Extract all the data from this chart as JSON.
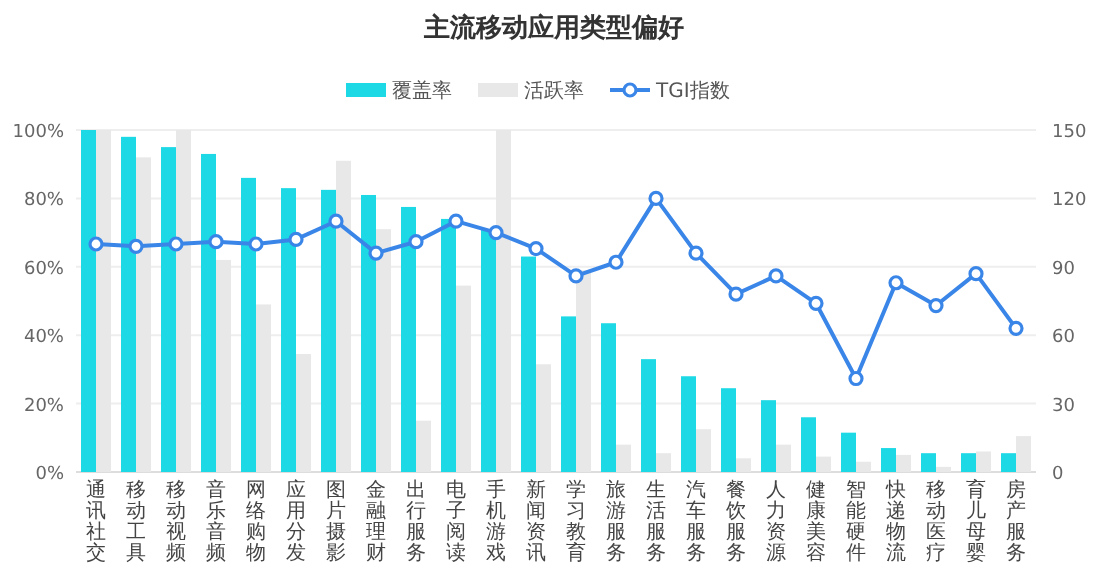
{
  "chart_data": {
    "type": "bar",
    "title": "主流移动应用类型偏好",
    "categories": [
      "通讯社交",
      "移动工具",
      "移动视频",
      "音乐音频",
      "网络购物",
      "应用分发",
      "图片摄影",
      "金融理财",
      "出行服务",
      "电子阅读",
      "手机游戏",
      "新闻资讯",
      "学习教育",
      "旅游服务",
      "生活服务",
      "汽车服务",
      "餐饮服务",
      "人力资源",
      "健康美容",
      "智能硬件",
      "快递物流",
      "移动医疗",
      "育儿母婴",
      "房产服务"
    ],
    "series": [
      {
        "name": "覆盖率",
        "color": "#1dd9e5",
        "values": [
          100,
          98,
          95,
          93,
          86,
          83,
          82.5,
          81,
          77.5,
          74,
          71,
          63,
          45.5,
          43.5,
          33,
          28,
          24.5,
          21,
          16,
          11.5,
          7,
          5.5,
          5.5,
          5.5
        ]
      },
      {
        "name": "活跃率",
        "color": "#e8e8e8",
        "values": [
          100,
          92,
          100,
          62,
          49,
          34.5,
          91,
          71,
          15,
          54.5,
          100,
          31.5,
          59,
          8,
          5.5,
          12.5,
          4,
          8,
          4.5,
          3,
          5,
          1.5,
          6,
          10.5
        ]
      },
      {
        "name": "TGI指数",
        "type": "line",
        "axis": "y2",
        "color": "#3a86e8",
        "marker": "circle",
        "values": [
          100,
          99,
          100,
          101,
          100,
          102,
          110,
          96,
          101,
          110,
          105,
          98,
          86,
          92,
          120,
          96,
          78,
          86,
          74,
          41,
          83,
          73,
          87,
          63
        ]
      }
    ],
    "ylim": [
      0,
      100
    ],
    "yticks": [
      {
        "value": 0,
        "label": "0%"
      },
      {
        "value": 20,
        "label": "20%"
      },
      {
        "value": 40,
        "label": "40%"
      },
      {
        "value": 60,
        "label": "60%"
      },
      {
        "value": 80,
        "label": "80%"
      },
      {
        "value": 100,
        "label": "100%"
      }
    ],
    "y2lim": [
      0,
      150
    ],
    "y2ticks": [
      0,
      30,
      60,
      90,
      120,
      150
    ],
    "grid": "y",
    "legend": "top"
  }
}
